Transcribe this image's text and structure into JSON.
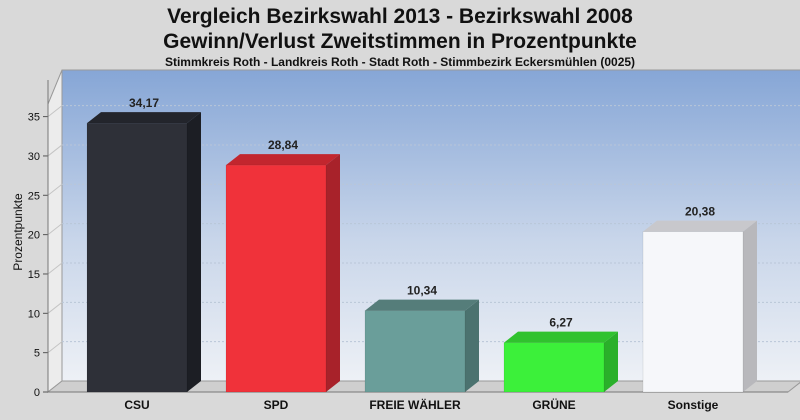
{
  "header": {
    "title": "Vergleich Bezirkswahl 2013 - Bezirkswahl 2008",
    "subtitle": "Gewinn/Verlust Zweitstimmen in Prozentpunkte",
    "caption": "Stimmkreis Roth - Landkreis Roth - Stadt Roth - Stimmbezirk Eckersmühlen (0025)"
  },
  "chart_data": {
    "type": "bar",
    "title": "Vergleich Bezirkswahl 2013 - Bezirkswahl 2008",
    "subtitle": "Gewinn/Verlust Zweitstimmen in Prozentpunkte",
    "xlabel": "",
    "ylabel": "Prozentpunkte",
    "ylim": [
      0,
      38
    ],
    "yticks": [
      0,
      5,
      10,
      15,
      20,
      25,
      30,
      35
    ],
    "grid": true,
    "legend": "none",
    "categories": [
      "CSU",
      "SPD",
      "FREIE WÄHLER",
      "GRÜNE",
      "Sonstige"
    ],
    "values": [
      34.17,
      28.84,
      10.34,
      6.27,
      20.38
    ],
    "value_labels": [
      "34,17",
      "28,84",
      "10,34",
      "6,27",
      "20,38"
    ],
    "colors": [
      "#2e3038",
      "#f0323a",
      "#6a9e9a",
      "#3cf03a",
      "#f6f7fa"
    ],
    "side_colors": [
      "#1c1e24",
      "#a8222a",
      "#4b726f",
      "#2ab02a",
      "#b8b8bc"
    ],
    "top_colors": [
      "#23252c",
      "#c2262e",
      "#557d7a",
      "#30c22e",
      "#c8c8cc"
    ]
  }
}
